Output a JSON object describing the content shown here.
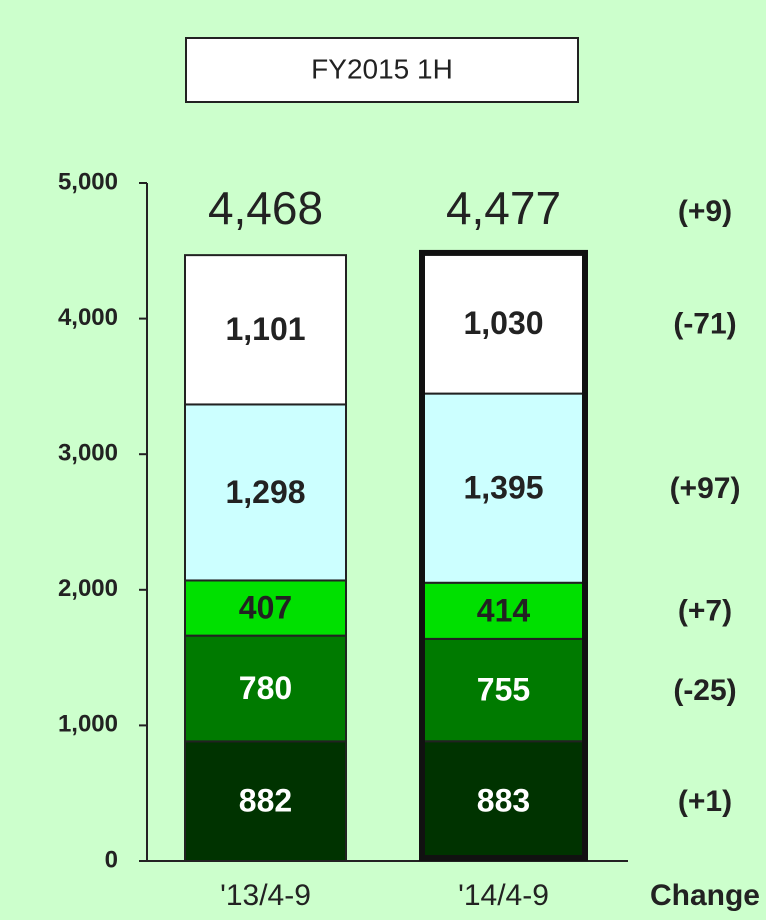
{
  "chart_data": {
    "type": "stacked_bar",
    "title": "FY2015 1H",
    "categories": [
      "'13/4-9",
      "'14/4-9"
    ],
    "series": [
      {
        "color": "#003300",
        "text_color": "#ffffff",
        "values": [
          882,
          883
        ],
        "value_labels": [
          "882",
          "883"
        ]
      },
      {
        "color": "#007a00",
        "text_color": "#ffffff",
        "values": [
          780,
          755
        ],
        "value_labels": [
          "780",
          "755"
        ]
      },
      {
        "color": "#00e000",
        "text_color": "#222222",
        "values": [
          407,
          414
        ],
        "value_labels": [
          "407",
          "414"
        ]
      },
      {
        "color": "#ccffff",
        "text_color": "#222222",
        "values": [
          1298,
          1395
        ],
        "value_labels": [
          "1,298",
          "1,395"
        ]
      },
      {
        "color": "#ffffff",
        "text_color": "#222222",
        "values": [
          1101,
          1030
        ],
        "value_labels": [
          "1,101",
          "1,030"
        ]
      }
    ],
    "totals": [
      4468,
      4477
    ],
    "total_labels": [
      "4,468",
      "4,477"
    ],
    "change_header": "Change",
    "total_change": "(+9)",
    "series_changes": [
      "(+1)",
      "(-25)",
      "(+7)",
      "(+97)",
      "(-71)"
    ],
    "ylim": [
      0,
      5000
    ],
    "yticks": [
      0,
      {
        "value": 1000,
        "label": "1,000"
      },
      {
        "value": 2000,
        "label": "2,000"
      },
      {
        "value": 3000,
        "label": "3,000"
      },
      {
        "value": 4000,
        "label": "4,000"
      },
      {
        "value": 5000,
        "label": "5,000"
      }
    ]
  }
}
